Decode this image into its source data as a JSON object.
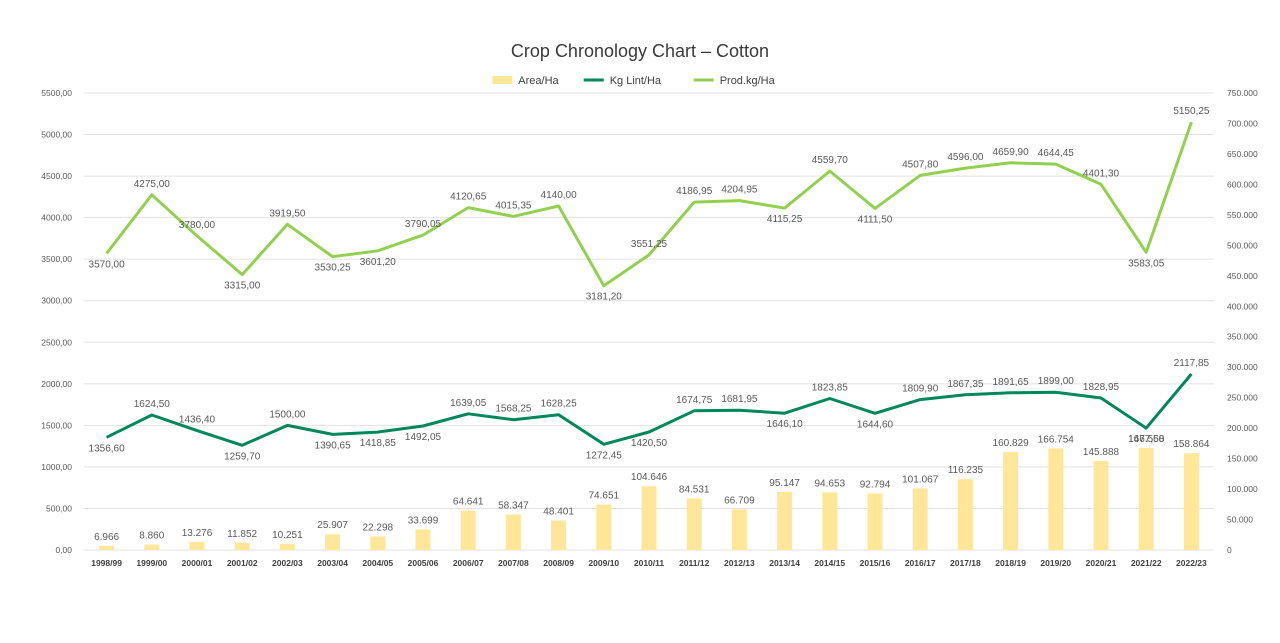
{
  "chart_data": {
    "type": "bar+line",
    "title": "Crop Chronology Chart – Cotton",
    "categories": [
      "1998/99",
      "1999/00",
      "2000/01",
      "2001/02",
      "2002/03",
      "2003/04",
      "2004/05",
      "2005/06",
      "2006/07",
      "2007/08",
      "2008/09",
      "2009/10",
      "2010/11",
      "2011/12",
      "2012/13",
      "2013/14",
      "2014/15",
      "2015/16",
      "2016/17",
      "2017/18",
      "2018/19",
      "2019/20",
      "2020/21",
      "2021/22",
      "2022/23"
    ],
    "left_axis": {
      "ylim": [
        0,
        5500
      ],
      "ticks": [
        "0,00",
        "500,00",
        "1000,00",
        "1500,00",
        "2000,00",
        "2500,00",
        "3000,00",
        "3500,00",
        "4000,00",
        "4500,00",
        "5000,00",
        "5500,00"
      ]
    },
    "right_axis": {
      "ylim": [
        0,
        750000
      ],
      "ticks": [
        "0",
        "50.000",
        "100.000",
        "150.000",
        "200.000",
        "250.000",
        "300.000",
        "350.000",
        "400.000",
        "450.000",
        "500.000",
        "550.000",
        "600.000",
        "650.000",
        "700.000",
        "750.000"
      ]
    },
    "grid": true,
    "legend_position": "top-center",
    "series": [
      {
        "name": "Area/Ha",
        "kind": "bar",
        "axis": "right",
        "color": "#FFE699",
        "values": [
          6966,
          8860,
          13276,
          11852,
          10251,
          25907,
          22298,
          33699,
          64641,
          58347,
          48401,
          74651,
          104646,
          84531,
          66709,
          95147,
          94653,
          92794,
          101067,
          116235,
          160829,
          166754,
          145888,
          167558,
          158864
        ],
        "labels": [
          "6.966",
          "8.860",
          "13.276",
          "11.852",
          "10.251",
          "25.907",
          "22.298",
          "33.699",
          "64.641",
          "58.347",
          "48.401",
          "74.651",
          "104.646",
          "84.531",
          "66.709",
          "95.147",
          "94.653",
          "92.794",
          "101.067",
          "116.235",
          "160.829",
          "166.754",
          "145.888",
          "167.558",
          "158.864"
        ]
      },
      {
        "name": "Kg Lint/Ha",
        "kind": "line",
        "axis": "left",
        "color": "#00875A",
        "values": [
          1356.6,
          1624.5,
          1436.4,
          1259.7,
          1500.0,
          1390.65,
          1418.85,
          1492.05,
          1639.05,
          1568.25,
          1628.25,
          1272.45,
          1420.5,
          1674.75,
          1681.95,
          1646.1,
          1823.85,
          1644.6,
          1809.9,
          1867.35,
          1891.65,
          1899.0,
          1828.95,
          1467.6,
          2117.85
        ],
        "labels": [
          "1356,60",
          "1624,50",
          "1436,40",
          "1259,70",
          "1500,00",
          "1390,65",
          "1418,85",
          "1492,05",
          "1639,05",
          "1568,25",
          "1628,25",
          "1272,45",
          "1420,50",
          "1674,75",
          "1681,95",
          "1646,10",
          "1823,85",
          "1644,60",
          "1809,90",
          "1867,35",
          "1891,65",
          "1899,00",
          "1828,95",
          "1467,60",
          "2117,85"
        ],
        "label_pos": [
          "below",
          "above",
          "above",
          "below",
          "above",
          "below",
          "below",
          "below",
          "above",
          "above",
          "above",
          "below",
          "below",
          "above",
          "above",
          "below",
          "above",
          "below",
          "above",
          "above",
          "above",
          "above",
          "above",
          "below",
          "above"
        ]
      },
      {
        "name": "Prod.kg/Ha",
        "kind": "line",
        "axis": "left",
        "color": "#92D050",
        "values": [
          3570.0,
          4275.0,
          3780.0,
          3315.0,
          3919.5,
          3530.25,
          3601.2,
          3790.05,
          4120.65,
          4015.35,
          4140.0,
          3181.2,
          3551.25,
          4186.95,
          4204.95,
          4115.25,
          4559.7,
          4111.5,
          4507.8,
          4596.0,
          4659.9,
          4644.45,
          4401.3,
          3583.05,
          5150.25
        ],
        "labels": [
          "3570,00",
          "4275,00",
          "3780,00",
          "3315,00",
          "3919,50",
          "3530,25",
          "3601,20",
          "3790,05",
          "4120,65",
          "4015,35",
          "4140,00",
          "3181,20",
          "3551,25",
          "4186,95",
          "4204,95",
          "4115,25",
          "4559,70",
          "4111,50",
          "4507,80",
          "4596,00",
          "4659,90",
          "4644,45",
          "4401,30",
          "3583,05",
          "5150,25"
        ],
        "label_pos": [
          "below",
          "above",
          "above",
          "below",
          "above",
          "below",
          "below",
          "above",
          "above",
          "above",
          "above",
          "below",
          "above",
          "above",
          "above",
          "below",
          "above",
          "below",
          "above",
          "above",
          "above",
          "above",
          "above",
          "below",
          "above"
        ]
      }
    ]
  }
}
